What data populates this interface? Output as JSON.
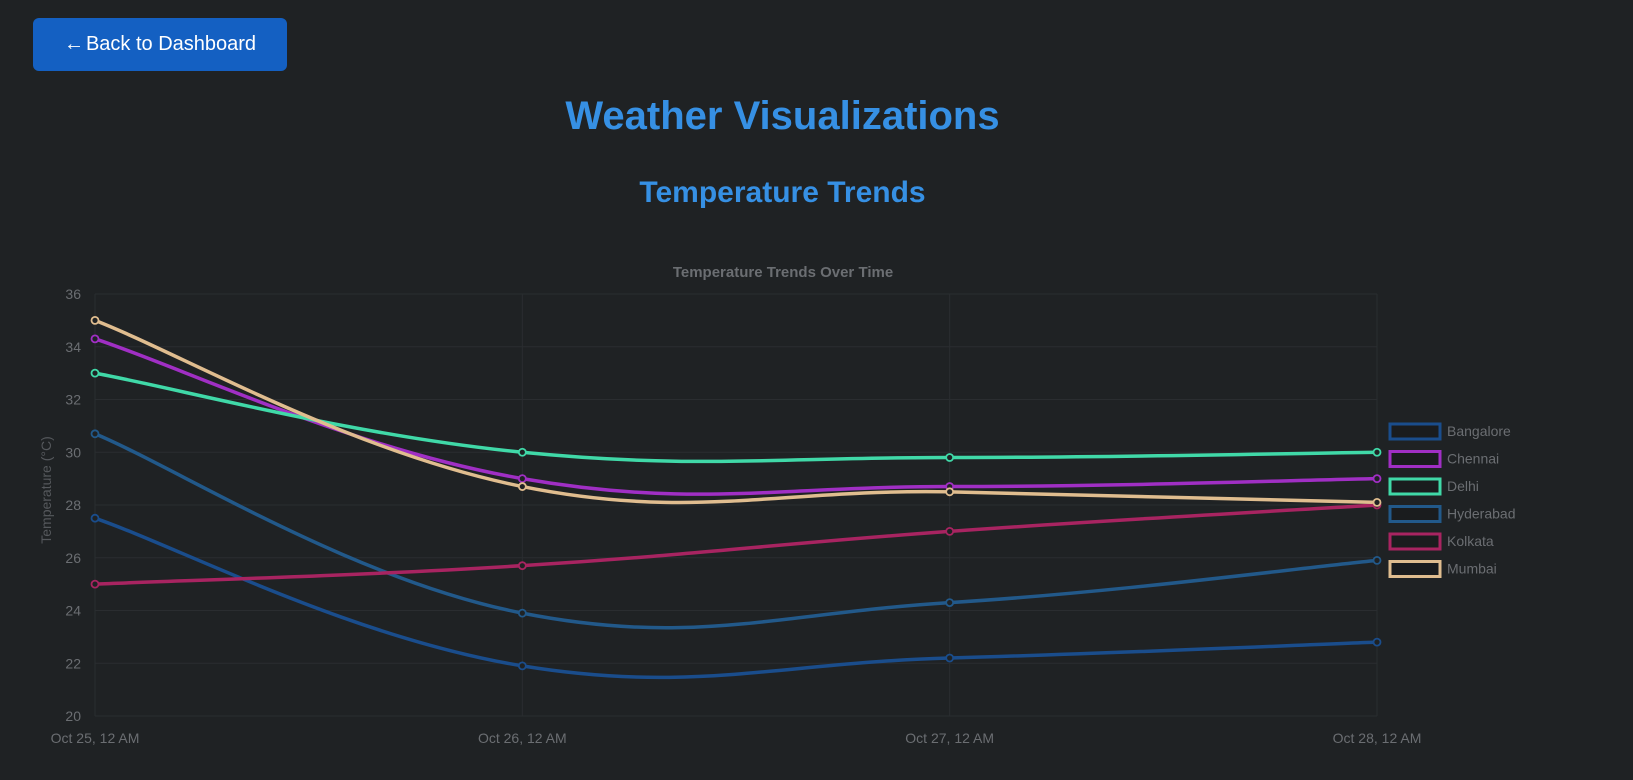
{
  "nav": {
    "back_arrow": "←",
    "back_label": "Back to Dashboard"
  },
  "page": {
    "title": "Weather Visualizations",
    "section_title": "Temperature Trends"
  },
  "colors": {
    "background": "#1f2224",
    "accent": "#3690e4",
    "button": "#1460c2",
    "grid": "#2a2d30",
    "axis_text": "#6b6e72"
  },
  "chart_data": {
    "type": "line",
    "title": "Temperature Trends Over Time",
    "xlabel": "",
    "ylabel": "Temperature (°C)",
    "x": [
      "Oct 25, 12 AM",
      "Oct 26, 12 AM",
      "Oct 27, 12 AM",
      "Oct 28, 12 AM"
    ],
    "ylim": [
      20,
      36
    ],
    "yticks": [
      20,
      22,
      24,
      26,
      28,
      30,
      32,
      34,
      36
    ],
    "grid": true,
    "legend_position": "right",
    "series": [
      {
        "name": "Bangalore",
        "color": "#1a4d8c",
        "values": [
          27.5,
          21.9,
          22.2,
          22.8
        ]
      },
      {
        "name": "Chennai",
        "color": "#a02fc4",
        "values": [
          34.3,
          29.0,
          28.7,
          29.0
        ]
      },
      {
        "name": "Delhi",
        "color": "#40d9a8",
        "values": [
          33.0,
          30.0,
          29.8,
          30.0
        ]
      },
      {
        "name": "Hyderabad",
        "color": "#22598a",
        "values": [
          30.7,
          23.9,
          24.3,
          25.9
        ]
      },
      {
        "name": "Kolkata",
        "color": "#a82461",
        "values": [
          25.0,
          25.7,
          27.0,
          28.0
        ]
      },
      {
        "name": "Mumbai",
        "color": "#e0bd8f",
        "values": [
          35.0,
          28.7,
          28.5,
          28.1
        ]
      }
    ]
  }
}
